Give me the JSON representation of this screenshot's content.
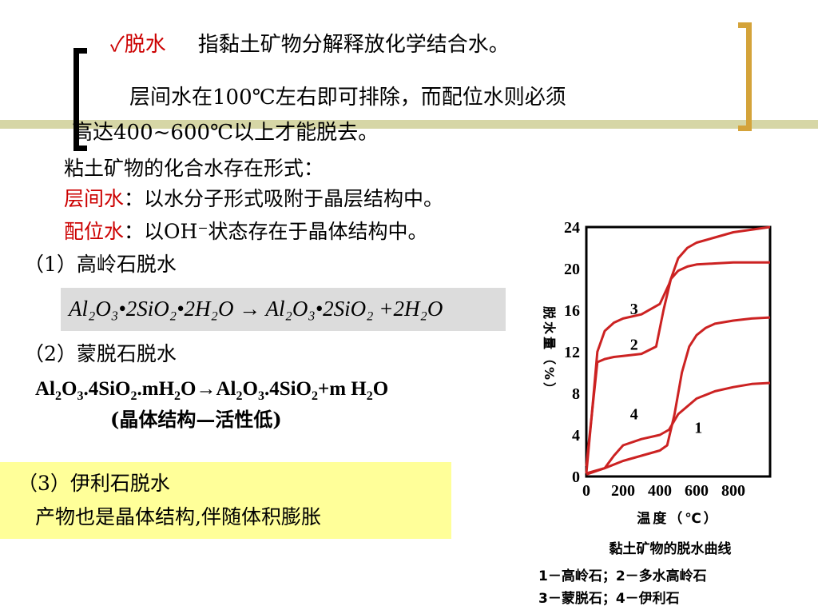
{
  "header": {
    "check_mark": "✓",
    "term": "脱水",
    "definition": "指黏土矿物分解释放化学结合水。",
    "line2": "层间水在100℃左右即可排除，而配位水则必须",
    "line3": "高达400~600℃以上才能脱去。"
  },
  "forms": {
    "intro": "粘土矿物的化合水存在形式：",
    "interlayer_term": "层间水",
    "interlayer_desc": "：以水分子形式吸附于晶层结构中。",
    "coord_term": "配位水",
    "coord_desc": "：以OH⁻状态存在于晶体结构中。"
  },
  "kaolinite": {
    "heading": "（1）高岭石脱水",
    "formula": "Al₂O₃•2SiO₂•2H₂O → Al₂O₃•2SiO₂ +2H₂O"
  },
  "montmorillonite": {
    "heading": "（2）蒙脱石脱水",
    "f1": "Al",
    "f2": "2",
    "f3": "O",
    "f4": "3",
    "f5": ".4SiO",
    "f6": "2",
    "f7": ".mH",
    "f8": "2",
    "f9": "O→Al",
    "f10": "2",
    "f11": "O",
    "f12": "3",
    "f13": ".4SiO",
    "f14": "2",
    "f15": "+m H",
    "f16": "2",
    "f17": "O",
    "note": "(晶体结构—活性低)"
  },
  "illite": {
    "heading": "（3）伊利石脱水",
    "desc": "产物也是晶体结构,伴随体积膨胀"
  },
  "colors": {
    "curve": "#cc2222",
    "accent_red": "#cc0000",
    "highlight": "#ffff99",
    "bracket_gold": "#d4a33a"
  },
  "chart_data": {
    "type": "line",
    "title": "黏土矿物的脱水曲线",
    "xlabel": "温度（℃）",
    "ylabel": "脱水量（%）",
    "xlim": [
      0,
      1000
    ],
    "ylim": [
      0,
      24
    ],
    "x_ticks": [
      "0",
      "200",
      "400",
      "600",
      "800"
    ],
    "x_tick_values": [
      0,
      200,
      400,
      600,
      800
    ],
    "y_ticks": [
      "0",
      "4",
      "8",
      "12",
      "16",
      "20",
      "24"
    ],
    "y_tick_values": [
      0,
      4,
      8,
      12,
      16,
      20,
      24
    ],
    "legend_line1": "1－高岭石；2－多水高岭石",
    "legend_line2": "3－蒙脱石；4－伊利石",
    "series": [
      {
        "name": "1",
        "label_at": [
          610,
          4.2
        ],
        "x": [
          0,
          100,
          200,
          300,
          400,
          440,
          480,
          520,
          560,
          600,
          650,
          700,
          800,
          900,
          1000
        ],
        "y": [
          0.2,
          0.8,
          1.5,
          2.0,
          2.5,
          3.0,
          6.0,
          10.0,
          12.5,
          13.6,
          14.3,
          14.7,
          15.0,
          15.2,
          15.3
        ]
      },
      {
        "name": "2",
        "label_at": [
          260,
          12.2
        ],
        "x": [
          0,
          30,
          60,
          100,
          150,
          200,
          300,
          380,
          420,
          460,
          500,
          550,
          600,
          700,
          800,
          1000
        ],
        "y": [
          0.3,
          6.0,
          11.0,
          11.3,
          11.5,
          11.6,
          11.8,
          12.5,
          16.0,
          19.0,
          19.8,
          20.2,
          20.4,
          20.5,
          20.6,
          20.6
        ]
      },
      {
        "name": "3",
        "label_at": [
          260,
          15.6
        ],
        "x": [
          0,
          30,
          60,
          100,
          150,
          200,
          300,
          400,
          450,
          500,
          550,
          600,
          700,
          800,
          1000
        ],
        "y": [
          1.0,
          6.0,
          12.0,
          14.0,
          14.8,
          15.2,
          15.6,
          16.6,
          18.5,
          21.0,
          22.0,
          22.5,
          23.0,
          23.5,
          24.0
        ]
      },
      {
        "name": "4",
        "label_at": [
          260,
          5.5
        ],
        "x": [
          0,
          100,
          150,
          200,
          300,
          400,
          450,
          500,
          600,
          700,
          800,
          900,
          1000
        ],
        "y": [
          0.3,
          0.8,
          2.0,
          3.0,
          3.6,
          4.0,
          4.5,
          6.0,
          7.5,
          8.2,
          8.6,
          8.9,
          9.0
        ]
      }
    ]
  }
}
